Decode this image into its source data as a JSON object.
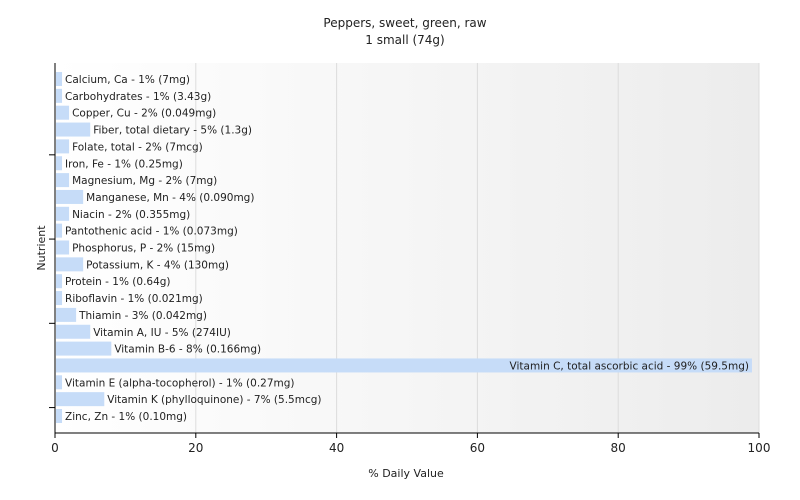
{
  "chart_data": {
    "type": "bar",
    "orientation": "horizontal",
    "title": "Peppers, sweet, green, raw",
    "subtitle": "1 small (74g)",
    "xlabel": "% Daily Value",
    "ylabel": "Nutrient",
    "xlim": [
      0,
      100
    ],
    "xticks": [
      0,
      20,
      40,
      60,
      80,
      100
    ],
    "grid": true,
    "bar_color": "#c6dcf8",
    "categories": [
      "Calcium, Ca",
      "Carbohydrates",
      "Copper, Cu",
      "Fiber, total dietary",
      "Folate, total",
      "Iron, Fe",
      "Magnesium, Mg",
      "Manganese, Mn",
      "Niacin",
      "Pantothenic acid",
      "Phosphorus, P",
      "Potassium, K",
      "Protein",
      "Riboflavin",
      "Thiamin",
      "Vitamin A, IU",
      "Vitamin B-6",
      "Vitamin C, total ascorbic acid",
      "Vitamin E (alpha-tocopherol)",
      "Vitamin K (phylloquinone)",
      "Zinc, Zn"
    ],
    "values": [
      1,
      1,
      2,
      5,
      2,
      1,
      2,
      4,
      2,
      1,
      2,
      4,
      1,
      1,
      3,
      5,
      8,
      99,
      1,
      7,
      1
    ],
    "labels": [
      "Calcium, Ca - 1% (7mg)",
      "Carbohydrates - 1% (3.43g)",
      "Copper, Cu - 2% (0.049mg)",
      "Fiber, total dietary - 5% (1.3g)",
      "Folate, total - 2% (7mcg)",
      "Iron, Fe - 1% (0.25mg)",
      "Magnesium, Mg - 2% (7mg)",
      "Manganese, Mn - 4% (0.090mg)",
      "Niacin - 2% (0.355mg)",
      "Pantothenic acid - 1% (0.073mg)",
      "Phosphorus, P - 2% (15mg)",
      "Potassium, K - 4% (130mg)",
      "Protein - 1% (0.64g)",
      "Riboflavin - 1% (0.021mg)",
      "Thiamin - 3% (0.042mg)",
      "Vitamin A, IU - 5% (274IU)",
      "Vitamin B-6 - 8% (0.166mg)",
      "Vitamin C, total ascorbic acid - 99% (59.5mg)",
      "Vitamin E (alpha-tocopherol) - 1% (0.27mg)",
      "Vitamin K (phylloquinone) - 7% (5.5mcg)",
      "Zinc, Zn - 1% (0.10mg)"
    ]
  }
}
